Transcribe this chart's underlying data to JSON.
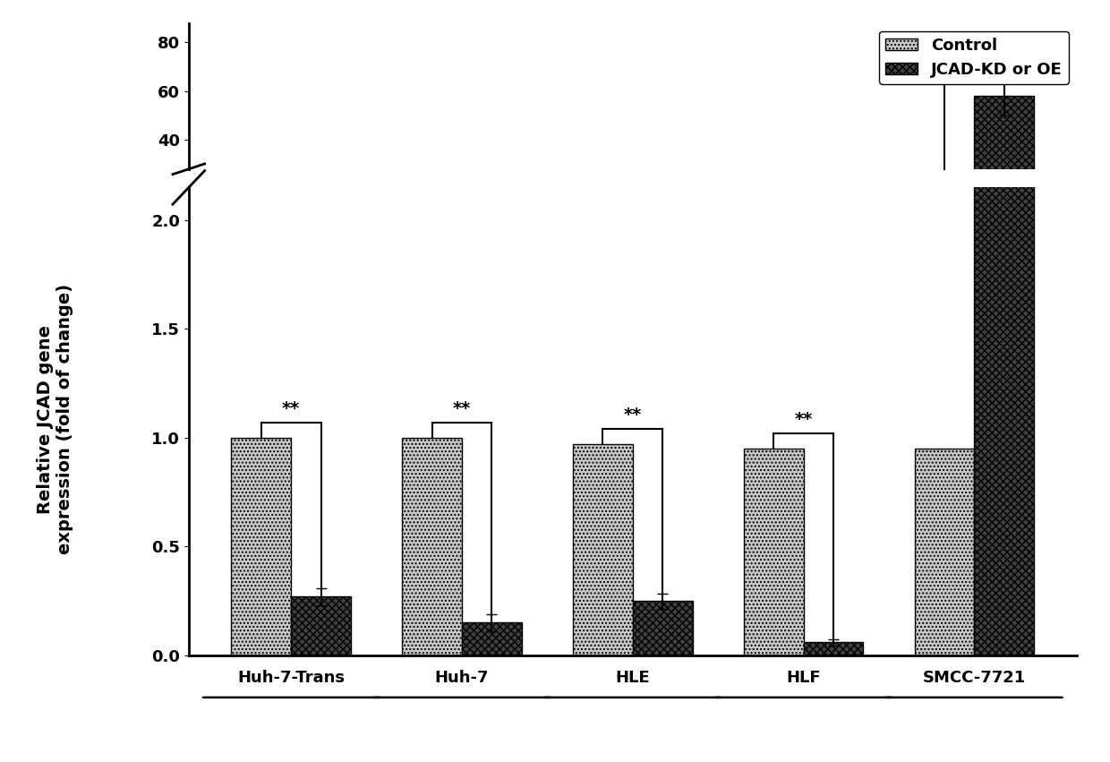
{
  "groups": [
    "Huh-7-Trans",
    "Huh-7",
    "HLE",
    "HLF",
    "SMCC-7721"
  ],
  "control_values": [
    1.0,
    1.0,
    0.97,
    0.95,
    0.95
  ],
  "treatment_values": [
    0.27,
    0.15,
    0.25,
    0.06,
    58.0
  ],
  "control_errors": [
    0.0,
    0.0,
    0.0,
    0.0,
    0.0
  ],
  "treatment_errors": [
    0.04,
    0.04,
    0.035,
    0.015,
    8.0
  ],
  "ctrl_color": "#c8c8c8",
  "ctrl_hatch": "....",
  "trt_color": "#404040",
  "trt_hatch": "xxxx",
  "ylabel_line1": "Relative JCAD gene",
  "ylabel_line2": "expression (fold of change)",
  "legend_control": "Control",
  "legend_treatment": "JCAD-KD or OE",
  "sig_label": "**",
  "bar_width": 0.35,
  "bg_color": "#ffffff",
  "lower_yticks": [
    0.0,
    0.5,
    1.0,
    1.5,
    2.0
  ],
  "upper_yticks": [
    40,
    60,
    80
  ],
  "lower_ylim": [
    0.0,
    2.15
  ],
  "upper_ylim": [
    28,
    88
  ],
  "tick_fontsize": 13,
  "label_fontsize": 14,
  "legend_fontsize": 13
}
